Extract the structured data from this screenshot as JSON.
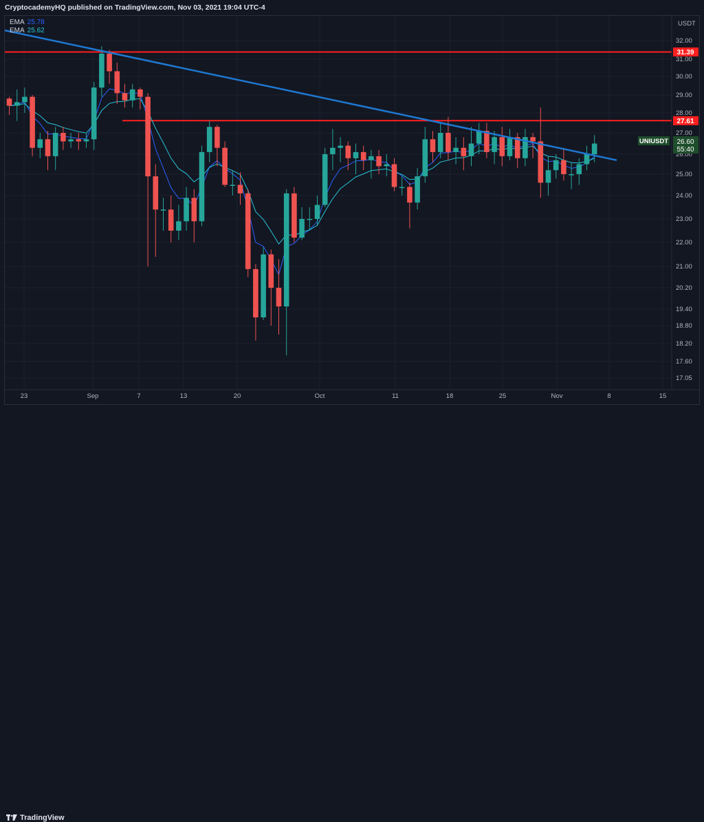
{
  "header": {
    "publisher_text": "CryptocademyHQ published on TradingView.com, Nov 03, 2021 19:04 UTC-4"
  },
  "footer": {
    "brand": "TradingView"
  },
  "legend": [
    {
      "name": "EMA",
      "value": "25.78",
      "color": "#2962ff"
    },
    {
      "name": "EMA",
      "value": "25.62",
      "color": "#26c6da"
    }
  ],
  "chart_data": {
    "type": "candlestick",
    "symbol": "UNIUSDT",
    "currency_label": "USDT",
    "last_price": "26.60",
    "countdown": "55:40",
    "y_axis_ticks": [
      "32.00",
      "31.00",
      "30.00",
      "29.00",
      "28.00",
      "27.00",
      "26.00",
      "25.00",
      "24.00",
      "23.00",
      "22.00",
      "21.00",
      "20.20",
      "19.40",
      "18.80",
      "18.20",
      "17.60",
      "17.05"
    ],
    "x_axis_ticks": [
      "23",
      "Sep",
      "7",
      "13",
      "20",
      "Oct",
      "11",
      "18",
      "25",
      "Nov",
      "8",
      "15"
    ],
    "horizontal_lines": [
      {
        "price": 31.39,
        "label": "31.39",
        "color": "#ff1f1f"
      },
      {
        "price": 27.61,
        "label": "27.61",
        "color": "#ff1f1f"
      }
    ],
    "trendline": {
      "color": "#1e78d2"
    },
    "up_color": "#26a69a",
    "down_color": "#ef5350",
    "candles": [
      [
        28.8,
        28.4,
        28.9,
        27.9
      ],
      [
        28.4,
        28.6,
        29.3,
        27.6
      ],
      [
        28.6,
        28.9,
        29.4,
        28.0
      ],
      [
        28.9,
        26.3,
        29.0,
        25.9
      ],
      [
        26.3,
        26.7,
        27.0,
        25.8
      ],
      [
        26.7,
        25.9,
        27.1,
        25.2
      ],
      [
        25.9,
        27.0,
        27.3,
        25.2
      ],
      [
        27.0,
        26.6,
        27.3,
        26.2
      ],
      [
        26.6,
        26.7,
        27.0,
        26.3
      ],
      [
        26.7,
        26.6,
        27.0,
        26.2
      ],
      [
        26.6,
        26.7,
        27.0,
        26.3
      ],
      [
        26.7,
        29.4,
        29.7,
        26.2
      ],
      [
        29.4,
        31.3,
        31.7,
        28.9
      ],
      [
        31.3,
        30.3,
        31.5,
        29.6
      ],
      [
        30.3,
        29.1,
        30.8,
        28.5
      ],
      [
        29.1,
        28.7,
        29.6,
        28.3
      ],
      [
        28.7,
        29.3,
        29.6,
        28.3
      ],
      [
        29.3,
        28.9,
        29.4,
        28.2
      ],
      [
        28.9,
        24.9,
        29.1,
        21.0
      ],
      [
        24.9,
        23.4,
        25.5,
        21.4
      ],
      [
        23.4,
        23.4,
        23.9,
        22.5
      ],
      [
        23.4,
        22.5,
        24.0,
        22.0
      ],
      [
        22.5,
        22.9,
        23.6,
        22.1
      ],
      [
        22.9,
        23.9,
        24.4,
        22.5
      ],
      [
        23.9,
        22.9,
        24.3,
        22.0
      ],
      [
        22.9,
        26.1,
        26.4,
        22.7
      ],
      [
        26.1,
        27.3,
        27.6,
        25.6
      ],
      [
        27.3,
        26.3,
        27.4,
        25.4
      ],
      [
        26.3,
        24.5,
        26.6,
        24.4
      ],
      [
        24.5,
        24.5,
        25.2,
        24.0
      ],
      [
        24.5,
        24.1,
        25.1,
        23.6
      ],
      [
        24.1,
        20.9,
        24.3,
        20.6
      ],
      [
        20.9,
        19.1,
        21.1,
        18.3
      ],
      [
        19.1,
        21.5,
        21.8,
        19.0
      ],
      [
        21.5,
        20.2,
        21.7,
        18.8
      ],
      [
        20.2,
        19.5,
        21.3,
        18.5
      ],
      [
        19.5,
        24.1,
        24.3,
        17.8
      ],
      [
        24.1,
        22.2,
        24.4,
        22.0
      ],
      [
        22.2,
        23.0,
        23.5,
        22.1
      ],
      [
        23.0,
        23.0,
        23.5,
        22.5
      ],
      [
        23.0,
        23.6,
        24.0,
        22.7
      ],
      [
        23.6,
        26.0,
        26.3,
        23.5
      ],
      [
        26.0,
        26.3,
        27.2,
        25.2
      ],
      [
        26.3,
        26.4,
        26.8,
        25.6
      ],
      [
        26.4,
        25.8,
        26.6,
        25.2
      ],
      [
        25.8,
        26.1,
        26.5,
        25.0
      ],
      [
        26.1,
        25.7,
        26.4,
        25.2
      ],
      [
        25.7,
        25.9,
        26.2,
        24.8
      ],
      [
        25.9,
        25.4,
        26.2,
        25.0
      ],
      [
        25.4,
        25.5,
        26.0,
        24.9
      ],
      [
        25.5,
        24.4,
        25.8,
        24.2
      ],
      [
        24.4,
        24.4,
        24.9,
        24.0
      ],
      [
        24.4,
        23.7,
        24.6,
        22.6
      ],
      [
        23.7,
        24.9,
        25.3,
        23.4
      ],
      [
        24.9,
        26.7,
        27.3,
        24.6
      ],
      [
        26.7,
        26.1,
        27.1,
        25.6
      ],
      [
        26.1,
        27.0,
        27.5,
        25.8
      ],
      [
        27.0,
        26.1,
        27.8,
        25.7
      ],
      [
        26.1,
        26.3,
        26.8,
        25.5
      ],
      [
        26.3,
        25.9,
        26.8,
        25.2
      ],
      [
        25.9,
        26.5,
        27.3,
        25.4
      ],
      [
        26.5,
        27.1,
        27.5,
        26.0
      ],
      [
        27.1,
        26.1,
        27.5,
        25.8
      ],
      [
        26.1,
        26.8,
        27.1,
        25.5
      ],
      [
        26.8,
        25.9,
        27.3,
        25.4
      ],
      [
        25.9,
        26.8,
        27.2,
        25.7
      ],
      [
        26.8,
        25.8,
        27.0,
        25.3
      ],
      [
        25.8,
        26.8,
        27.2,
        25.4
      ],
      [
        26.8,
        26.6,
        27.0,
        25.8
      ],
      [
        26.6,
        24.6,
        28.3,
        23.9
      ],
      [
        24.6,
        25.2,
        25.9,
        24.0
      ],
      [
        25.2,
        25.7,
        26.0,
        24.8
      ],
      [
        25.7,
        25.0,
        26.3,
        24.7
      ],
      [
        25.0,
        25.0,
        25.6,
        24.3
      ],
      [
        25.0,
        25.5,
        25.8,
        24.5
      ],
      [
        25.5,
        26.0,
        26.4,
        25.2
      ],
      [
        26.0,
        26.5,
        26.9,
        25.6
      ]
    ]
  }
}
